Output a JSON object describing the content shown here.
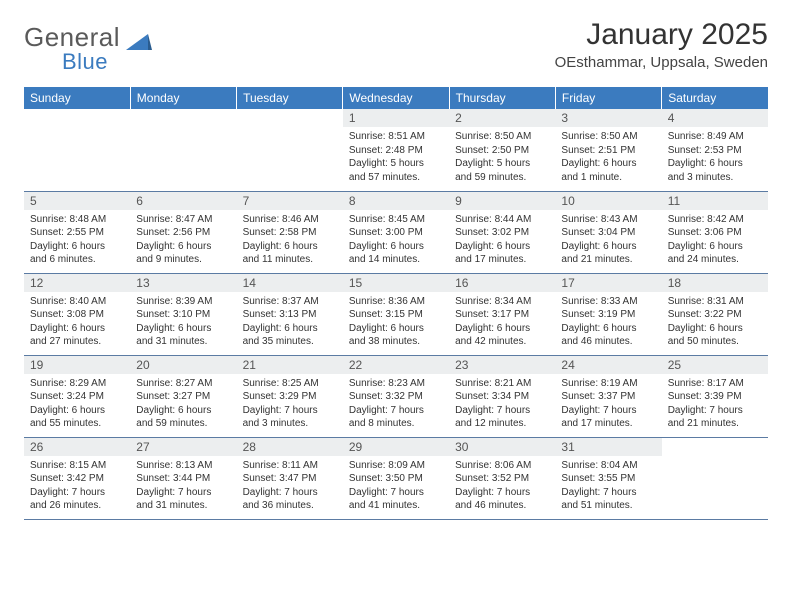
{
  "logo": {
    "line1": "General",
    "line2": "Blue"
  },
  "title": "January 2025",
  "subtitle": "OEsthammar, Uppsala, Sweden",
  "brand_color": "#3b7bbf",
  "daybar_bg": "#eceeef",
  "divider_color": "#5b7ba3",
  "day_headers": [
    "Sunday",
    "Monday",
    "Tuesday",
    "Wednesday",
    "Thursday",
    "Friday",
    "Saturday"
  ],
  "weeks": [
    [
      null,
      null,
      null,
      {
        "n": "1",
        "sr": "8:51 AM",
        "ss": "2:48 PM",
        "dl": "5 hours and 57 minutes."
      },
      {
        "n": "2",
        "sr": "8:50 AM",
        "ss": "2:50 PM",
        "dl": "5 hours and 59 minutes."
      },
      {
        "n": "3",
        "sr": "8:50 AM",
        "ss": "2:51 PM",
        "dl": "6 hours and 1 minute."
      },
      {
        "n": "4",
        "sr": "8:49 AM",
        "ss": "2:53 PM",
        "dl": "6 hours and 3 minutes."
      }
    ],
    [
      {
        "n": "5",
        "sr": "8:48 AM",
        "ss": "2:55 PM",
        "dl": "6 hours and 6 minutes."
      },
      {
        "n": "6",
        "sr": "8:47 AM",
        "ss": "2:56 PM",
        "dl": "6 hours and 9 minutes."
      },
      {
        "n": "7",
        "sr": "8:46 AM",
        "ss": "2:58 PM",
        "dl": "6 hours and 11 minutes."
      },
      {
        "n": "8",
        "sr": "8:45 AM",
        "ss": "3:00 PM",
        "dl": "6 hours and 14 minutes."
      },
      {
        "n": "9",
        "sr": "8:44 AM",
        "ss": "3:02 PM",
        "dl": "6 hours and 17 minutes."
      },
      {
        "n": "10",
        "sr": "8:43 AM",
        "ss": "3:04 PM",
        "dl": "6 hours and 21 minutes."
      },
      {
        "n": "11",
        "sr": "8:42 AM",
        "ss": "3:06 PM",
        "dl": "6 hours and 24 minutes."
      }
    ],
    [
      {
        "n": "12",
        "sr": "8:40 AM",
        "ss": "3:08 PM",
        "dl": "6 hours and 27 minutes."
      },
      {
        "n": "13",
        "sr": "8:39 AM",
        "ss": "3:10 PM",
        "dl": "6 hours and 31 minutes."
      },
      {
        "n": "14",
        "sr": "8:37 AM",
        "ss": "3:13 PM",
        "dl": "6 hours and 35 minutes."
      },
      {
        "n": "15",
        "sr": "8:36 AM",
        "ss": "3:15 PM",
        "dl": "6 hours and 38 minutes."
      },
      {
        "n": "16",
        "sr": "8:34 AM",
        "ss": "3:17 PM",
        "dl": "6 hours and 42 minutes."
      },
      {
        "n": "17",
        "sr": "8:33 AM",
        "ss": "3:19 PM",
        "dl": "6 hours and 46 minutes."
      },
      {
        "n": "18",
        "sr": "8:31 AM",
        "ss": "3:22 PM",
        "dl": "6 hours and 50 minutes."
      }
    ],
    [
      {
        "n": "19",
        "sr": "8:29 AM",
        "ss": "3:24 PM",
        "dl": "6 hours and 55 minutes."
      },
      {
        "n": "20",
        "sr": "8:27 AM",
        "ss": "3:27 PM",
        "dl": "6 hours and 59 minutes."
      },
      {
        "n": "21",
        "sr": "8:25 AM",
        "ss": "3:29 PM",
        "dl": "7 hours and 3 minutes."
      },
      {
        "n": "22",
        "sr": "8:23 AM",
        "ss": "3:32 PM",
        "dl": "7 hours and 8 minutes."
      },
      {
        "n": "23",
        "sr": "8:21 AM",
        "ss": "3:34 PM",
        "dl": "7 hours and 12 minutes."
      },
      {
        "n": "24",
        "sr": "8:19 AM",
        "ss": "3:37 PM",
        "dl": "7 hours and 17 minutes."
      },
      {
        "n": "25",
        "sr": "8:17 AM",
        "ss": "3:39 PM",
        "dl": "7 hours and 21 minutes."
      }
    ],
    [
      {
        "n": "26",
        "sr": "8:15 AM",
        "ss": "3:42 PM",
        "dl": "7 hours and 26 minutes."
      },
      {
        "n": "27",
        "sr": "8:13 AM",
        "ss": "3:44 PM",
        "dl": "7 hours and 31 minutes."
      },
      {
        "n": "28",
        "sr": "8:11 AM",
        "ss": "3:47 PM",
        "dl": "7 hours and 36 minutes."
      },
      {
        "n": "29",
        "sr": "8:09 AM",
        "ss": "3:50 PM",
        "dl": "7 hours and 41 minutes."
      },
      {
        "n": "30",
        "sr": "8:06 AM",
        "ss": "3:52 PM",
        "dl": "7 hours and 46 minutes."
      },
      {
        "n": "31",
        "sr": "8:04 AM",
        "ss": "3:55 PM",
        "dl": "7 hours and 51 minutes."
      },
      null
    ]
  ],
  "labels": {
    "sunrise": "Sunrise:",
    "sunset": "Sunset:",
    "daylight": "Daylight:"
  }
}
